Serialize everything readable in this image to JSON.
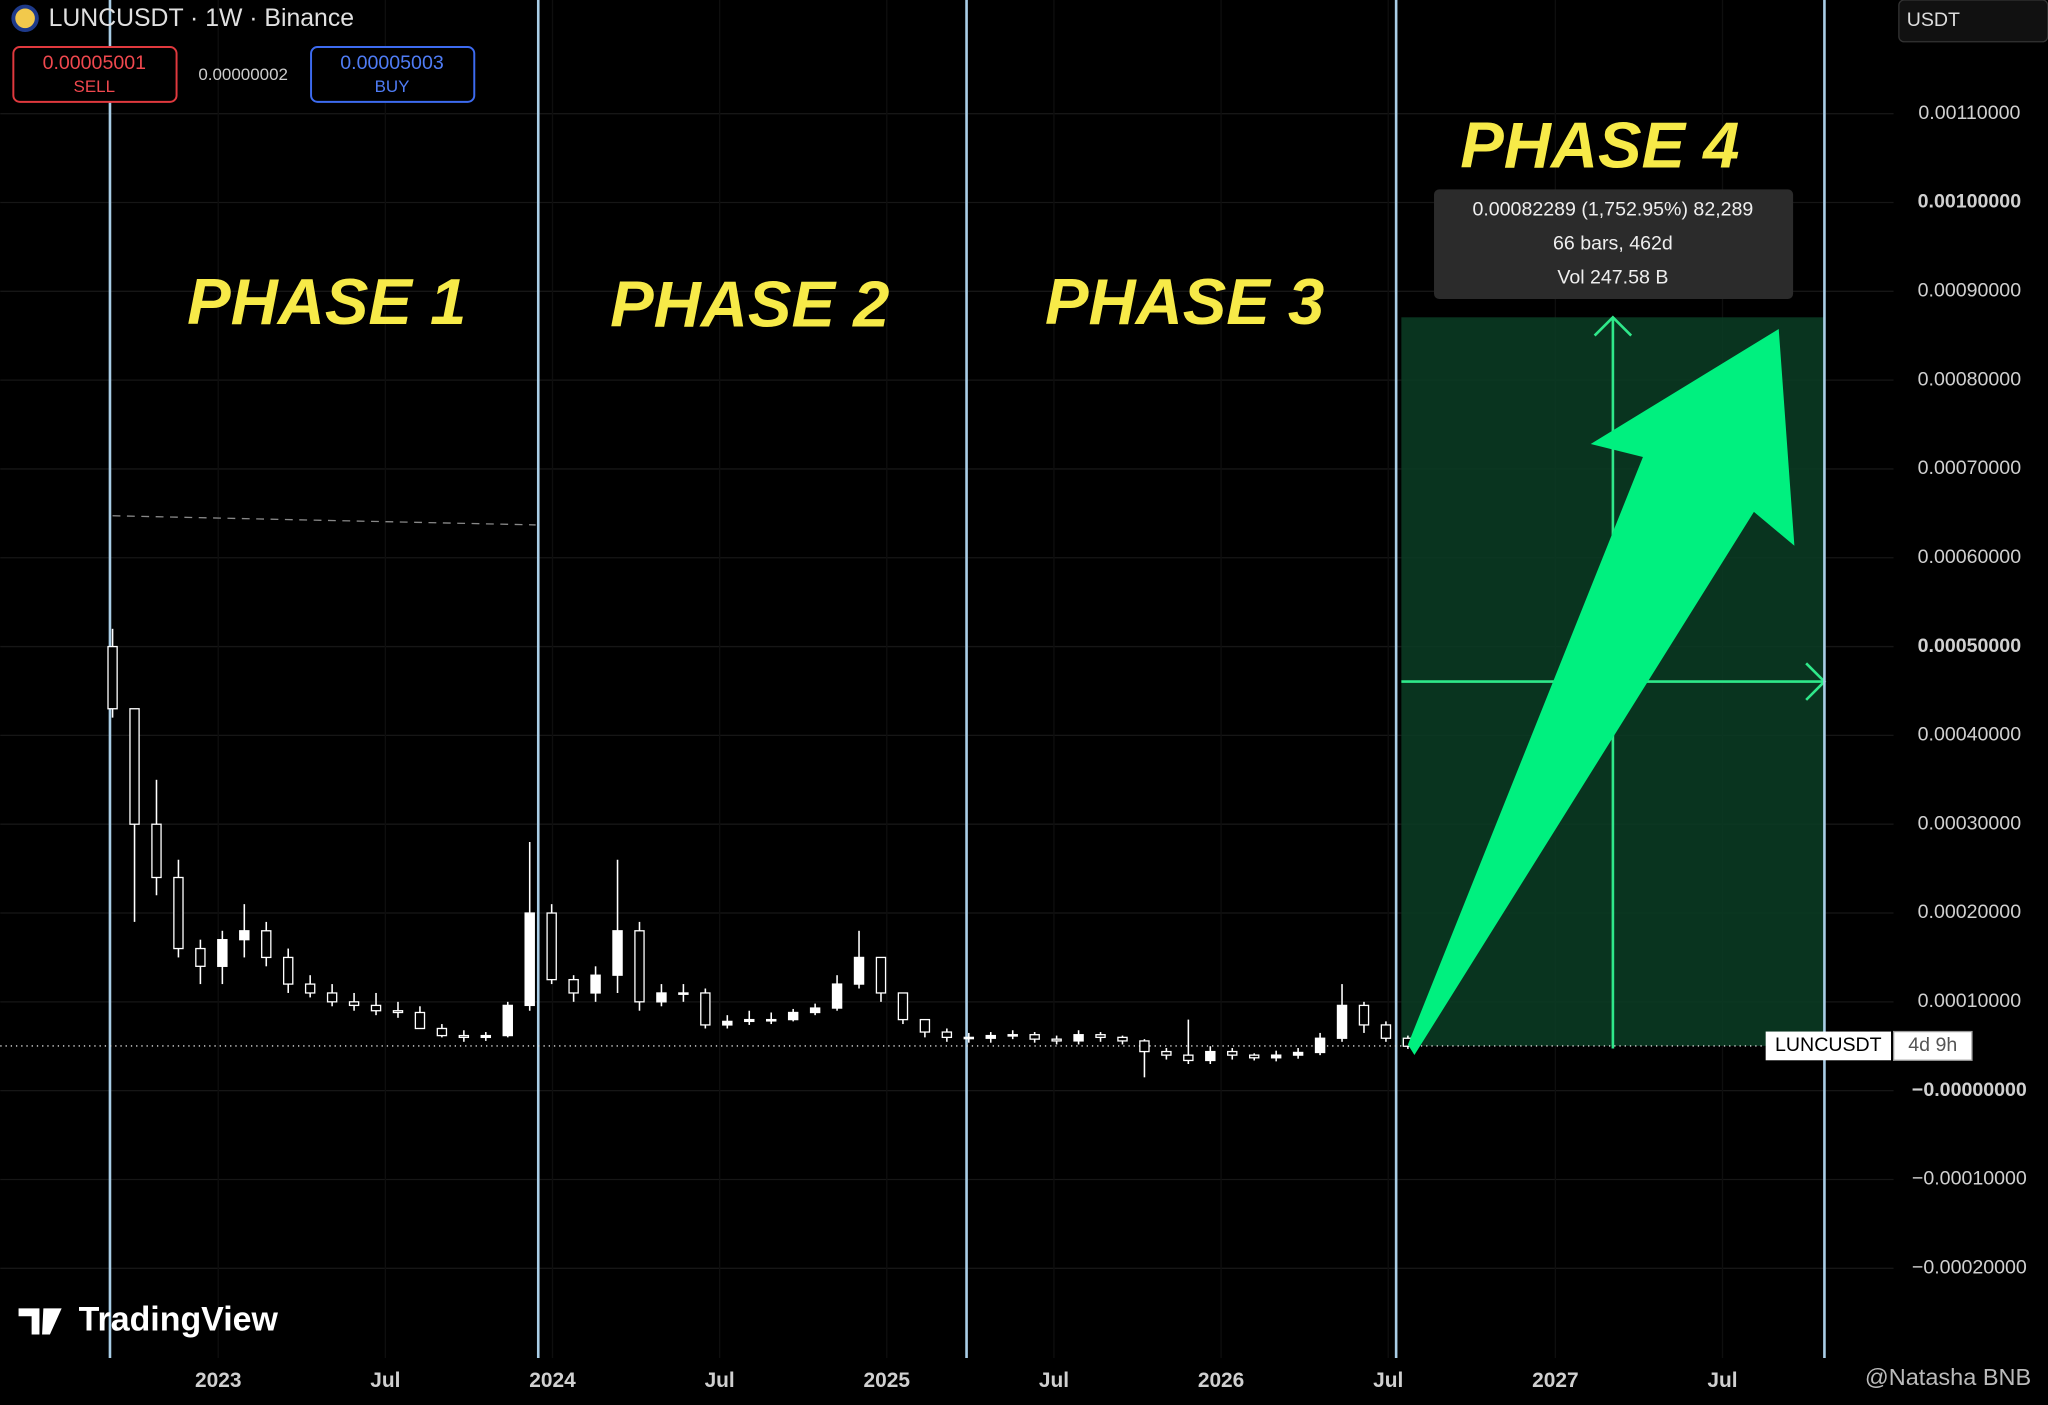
{
  "header": {
    "symbol": "LUNCUSDT · 1W · Binance",
    "sell_price": "0.00005001",
    "sell_label": "SELL",
    "spread": "0.00000002",
    "buy_price": "0.00005003",
    "buy_label": "BUY",
    "currency": "USDT"
  },
  "chart_data": {
    "type": "candlestick",
    "annotations": {
      "phases": [
        "PHASE 1",
        "PHASE 2",
        "PHASE 3",
        "PHASE 4"
      ],
      "measure": [
        "0.00082289 (1,752.95%) 82,289",
        "66 bars, 462d",
        "Vol 247.58 B"
      ],
      "price_tag": "LUNCUSDT",
      "countdown": "4d 9h"
    },
    "open": [
      0.0005,
      0.00043,
      0.0003,
      0.00024,
      0.00016,
      0.00014,
      0.00017,
      0.00018,
      0.00015,
      0.00012,
      0.00011,
      0.0001,
      9.6e-05,
      9e-05,
      8.8e-05,
      7e-05,
      6.2e-05,
      6e-05,
      6.2e-05,
      9.6e-05,
      0.0002,
      0.000125,
      0.00011,
      0.00013,
      0.00018,
      0.0001,
      0.00011,
      0.00011,
      7.4e-05,
      7.8e-05,
      8e-05,
      8e-05,
      8.8e-05,
      9.3e-05,
      0.00012,
      0.00015,
      0.00011,
      8e-05,
      6.6e-05,
      6e-05,
      5.9e-05,
      6.2e-05,
      6.3e-05,
      5.8e-05,
      5.6e-05,
      6.3e-05,
      6e-05,
      5.6e-05,
      4.4e-05,
      4e-05,
      3.4e-05,
      4.4e-05,
      4e-05,
      3.7e-05,
      4e-05,
      4.3e-05,
      5.9e-05,
      9.6e-05,
      7.4e-05,
      5.9e-05
    ],
    "high": [
      0.00052,
      0.00043,
      0.00035,
      0.00026,
      0.00017,
      0.00018,
      0.00021,
      0.00019,
      0.00016,
      0.00013,
      0.00012,
      0.00011,
      0.00011,
      0.0001,
      9.5e-05,
      7.5e-05,
      6.8e-05,
      6.6e-05,
      0.0001,
      0.00028,
      0.00021,
      0.00013,
      0.00014,
      0.00026,
      0.00019,
      0.00012,
      0.00012,
      0.000115,
      8.5e-05,
      9e-05,
      8.8e-05,
      9.2e-05,
      9.8e-05,
      0.00013,
      0.00018,
      0.00015,
      0.00011,
      8e-05,
      7e-05,
      6.5e-05,
      6.6e-05,
      6.8e-05,
      6.6e-05,
      6.2e-05,
      6.8e-05,
      6.6e-05,
      6.2e-05,
      5.8e-05,
      4.8e-05,
      8e-05,
      5e-05,
      4.8e-05,
      4.2e-05,
      4.5e-05,
      4.8e-05,
      6.5e-05,
      0.00012,
      0.0001,
      7.8e-05,
      6.2e-05
    ],
    "low": [
      0.00042,
      0.00019,
      0.00022,
      0.00015,
      0.00012,
      0.00012,
      0.00015,
      0.00014,
      0.00011,
      0.000105,
      9.5e-05,
      9e-05,
      8.5e-05,
      8.2e-05,
      7e-05,
      6e-05,
      5.5e-05,
      5.6e-05,
      6e-05,
      9e-05,
      0.00012,
      0.0001,
      0.0001,
      0.00011,
      9e-05,
      9.5e-05,
      0.0001,
      7e-05,
      7e-05,
      7.4e-05,
      7.5e-05,
      7.8e-05,
      8.5e-05,
      9e-05,
      0.000115,
      0.0001,
      7.5e-05,
      6e-05,
      5.5e-05,
      5.4e-05,
      5.4e-05,
      5.8e-05,
      5.4e-05,
      5.2e-05,
      5.2e-05,
      5.5e-05,
      5.2e-05,
      1.5e-05,
      3.5e-05,
      3e-05,
      3e-05,
      3.5e-05,
      3.4e-05,
      3.3e-05,
      3.6e-05,
      4e-05,
      5.5e-05,
      6.5e-05,
      5.5e-05,
      4.7e-05
    ],
    "close": [
      0.00043,
      0.0003,
      0.00024,
      0.00016,
      0.00014,
      0.00017,
      0.00018,
      0.00015,
      0.00012,
      0.00011,
      0.0001,
      9.6e-05,
      9e-05,
      8.8e-05,
      7e-05,
      6.2e-05,
      6e-05,
      6.2e-05,
      9.6e-05,
      0.0002,
      0.000125,
      0.00011,
      0.00013,
      0.00018,
      0.0001,
      0.00011,
      0.00011,
      7.4e-05,
      7.8e-05,
      8e-05,
      8e-05,
      8.8e-05,
      9.3e-05,
      0.00012,
      0.00015,
      0.00011,
      8e-05,
      6.6e-05,
      6e-05,
      5.9e-05,
      6.2e-05,
      6.3e-05,
      5.8e-05,
      5.6e-05,
      6.3e-05,
      6e-05,
      5.6e-05,
      4.4e-05,
      4e-05,
      3.4e-05,
      4.4e-05,
      4e-05,
      3.7e-05,
      4e-05,
      4.3e-05,
      5.9e-05,
      9.6e-05,
      7.4e-05,
      5.9e-05,
      5e-05
    ],
    "color": "#ffffff",
    "ylim": [
      -0.000301,
      0.001228
    ],
    "yticks": [
      {
        "value": 0.0011,
        "label": "0.00110000"
      },
      {
        "value": 0.001,
        "label": "0.00100000"
      },
      {
        "value": 0.0009,
        "label": "0.00090000"
      },
      {
        "value": 0.0008,
        "label": "0.00080000"
      },
      {
        "value": 0.0007,
        "label": "0.00070000"
      },
      {
        "value": 0.0006,
        "label": "0.00060000"
      },
      {
        "value": 0.0005,
        "label": "0.00050000"
      },
      {
        "value": 0.0004,
        "label": "0.00040000"
      },
      {
        "value": 0.0003,
        "label": "0.00030000"
      },
      {
        "value": 0.0002,
        "label": "0.00020000"
      },
      {
        "value": 0.0001,
        "label": "0.00010000"
      },
      {
        "value": 0,
        "label": "−0.00000000"
      },
      {
        "value": -0.0001,
        "label": "−0.00010000"
      },
      {
        "value": -0.0002,
        "label": "−0.00020000"
      }
    ],
    "xlim": [
      2022.348,
      2028.012
    ],
    "xticks": [
      2023,
      {
        "value": 2023.5,
        "label": "Jul"
      },
      2024,
      {
        "value": 2024.5,
        "label": "Jul"
      },
      2025,
      {
        "value": 2025.5,
        "label": "Jul"
      },
      2026,
      {
        "value": 2026.5,
        "label": "Jul"
      },
      2027,
      {
        "value": 2027.5,
        "label": "Jul"
      }
    ],
    "grid": true
  },
  "footer": {
    "brand": "TradingView",
    "watermark": "@Natasha BNB"
  }
}
